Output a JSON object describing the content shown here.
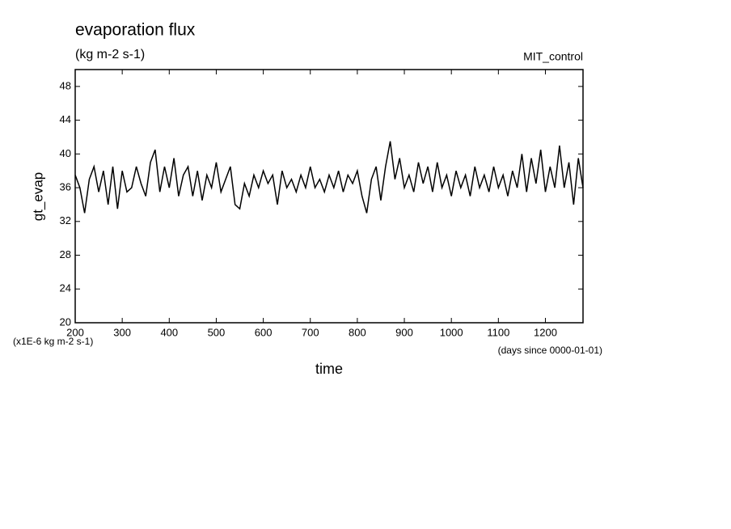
{
  "chart_data": {
    "type": "line",
    "title": "evaporation flux",
    "subtitle": "(kg m-2 s-1)",
    "annotation": "MIT_control",
    "y_label": "gt_evap",
    "x_label": "time",
    "y_units": "(x1E-6 kg m-2 s-1)",
    "x_units": "(days since 0000-01-01)",
    "xlim": [
      200,
      1280
    ],
    "ylim": [
      20,
      50
    ],
    "xticks": [
      200,
      300,
      400,
      500,
      600,
      700,
      800,
      900,
      1000,
      1100,
      1200
    ],
    "yticks": [
      20,
      24,
      28,
      32,
      36,
      40,
      44,
      48
    ],
    "series": [
      {
        "name": "gt_evap",
        "color": "#000000",
        "x": [
          200,
          210,
          220,
          230,
          240,
          250,
          260,
          270,
          280,
          290,
          300,
          310,
          320,
          330,
          340,
          350,
          360,
          370,
          380,
          390,
          400,
          410,
          420,
          430,
          440,
          450,
          460,
          470,
          480,
          490,
          500,
          510,
          520,
          530,
          540,
          550,
          560,
          570,
          580,
          590,
          600,
          610,
          620,
          630,
          640,
          650,
          660,
          670,
          680,
          690,
          700,
          710,
          720,
          730,
          740,
          750,
          760,
          770,
          780,
          790,
          800,
          810,
          820,
          830,
          840,
          850,
          860,
          870,
          880,
          890,
          900,
          910,
          920,
          930,
          940,
          950,
          960,
          970,
          980,
          990,
          1000,
          1010,
          1020,
          1030,
          1040,
          1050,
          1060,
          1070,
          1080,
          1090,
          1100,
          1110,
          1120,
          1130,
          1140,
          1150,
          1160,
          1170,
          1180,
          1190,
          1200,
          1210,
          1220,
          1230,
          1240,
          1250,
          1260,
          1270,
          1280
        ],
        "values": [
          37.5,
          36,
          33,
          37,
          38.5,
          35.5,
          38,
          34,
          38.5,
          33.5,
          38,
          35.5,
          36,
          38.5,
          36.5,
          35,
          39,
          40.5,
          35.5,
          38.5,
          36,
          39.5,
          35,
          37.5,
          38.5,
          35,
          38,
          34.5,
          37.5,
          36,
          39,
          35.5,
          37,
          38.5,
          34,
          33.5,
          36.5,
          35,
          37.5,
          36,
          38,
          36.5,
          37.5,
          34,
          38,
          36,
          37,
          35.5,
          37.5,
          36,
          38.5,
          36,
          37,
          35.5,
          37.5,
          36,
          38,
          35.5,
          37.5,
          36.5,
          38,
          35,
          33,
          37,
          38.5,
          34.5,
          38.5,
          41.5,
          37,
          39.5,
          36,
          37.5,
          35.5,
          39,
          36.5,
          38.5,
          35.5,
          39,
          36,
          37.5,
          35,
          38,
          36,
          37.5,
          35,
          38.5,
          36,
          37.5,
          35.5,
          38.5,
          36,
          37.5,
          35,
          38,
          36,
          40,
          35.5,
          39.5,
          36.5,
          40.5,
          35.5,
          38.5,
          36,
          41,
          36,
          39,
          34,
          39.5,
          36
        ]
      }
    ]
  }
}
